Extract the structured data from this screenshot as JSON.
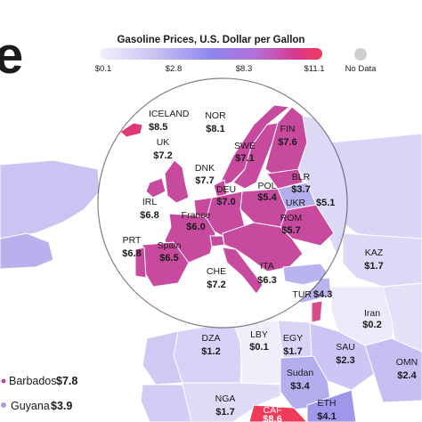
{
  "legend": {
    "title": "Gasoline Prices, U.S. Dollar per Gallon",
    "ticks": [
      "$0.1",
      "$2.8",
      "$8.3",
      "$11.1"
    ],
    "no_data_label": "No Data",
    "gradient": [
      "#f2f0fb",
      "#c8c2f2",
      "#8e86ee",
      "#b36fd8",
      "#d8398f",
      "#f03a5a"
    ]
  },
  "title_fragment": "e",
  "colors": {
    "ocean": "#ffffff",
    "no_data": "#cfcfcf",
    "europe_high": "#c8479a",
    "border": "#ffffff"
  },
  "inset_countries": [
    {
      "name": "ICELAND",
      "value": "$8.5"
    },
    {
      "name": "NOR",
      "value": "$8.1"
    },
    {
      "name": "UK",
      "value": "$7.2"
    },
    {
      "name": "FIN",
      "value": "$7.6"
    },
    {
      "name": "SWE",
      "value": "$7.1"
    },
    {
      "name": "DNK",
      "value": "$7.7"
    },
    {
      "name": "BLR",
      "value": "$3.7"
    },
    {
      "name": "POL",
      "value": "$5.4"
    },
    {
      "name": "DEU",
      "value": "$7.0"
    },
    {
      "name": "IRL",
      "value": "$6.8"
    },
    {
      "name": "UKR",
      "value": "$5.1"
    },
    {
      "name": "France",
      "value": "$6.0"
    },
    {
      "name": "ROM",
      "value": "$5.7"
    },
    {
      "name": "PRT",
      "value": "$6.8"
    },
    {
      "name": "Spain",
      "value": "$6.5"
    },
    {
      "name": "CHE",
      "value": "$7.2"
    },
    {
      "name": "ITA",
      "value": "$6.3"
    }
  ],
  "world_countries": [
    {
      "name": "KAZ",
      "value": "$1.7"
    },
    {
      "name": "TUR",
      "value": "$4.3"
    },
    {
      "name": "Iran",
      "value": "$0.2"
    },
    {
      "name": "DZA",
      "value": "$1.2"
    },
    {
      "name": "LBY",
      "value": "$0.1"
    },
    {
      "name": "EGY",
      "value": "$1.7"
    },
    {
      "name": "SAU",
      "value": "$2.3"
    },
    {
      "name": "OMN",
      "value": "$2.4"
    },
    {
      "name": "Sudan",
      "value": "$3.4"
    },
    {
      "name": "NGA",
      "value": "$1.7"
    },
    {
      "name": "ETH",
      "value": "$4.1"
    },
    {
      "name": "CAF",
      "value": "$8.6"
    }
  ],
  "side_labels": [
    {
      "name": "Barbados",
      "value": "$7.8"
    },
    {
      "name": "Guyana",
      "value": "$3.9"
    }
  ]
}
